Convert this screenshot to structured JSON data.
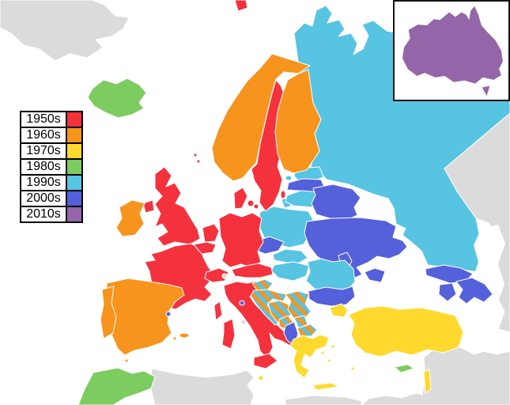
{
  "legend": {
    "items": [
      {
        "label": "1950s",
        "color": "#F4323E"
      },
      {
        "label": "1960s",
        "color": "#F7941E"
      },
      {
        "label": "1970s",
        "color": "#FFD92D"
      },
      {
        "label": "1980s",
        "color": "#7CCC5F"
      },
      {
        "label": "1990s",
        "color": "#57C4E2"
      },
      {
        "label": "2000s",
        "color": "#5560DB"
      },
      {
        "label": "2010s",
        "color": "#9466A9"
      }
    ],
    "border_color": "#000000",
    "background_color": "#ffffff"
  },
  "inset": {
    "region": "australia",
    "border_color": "#141414",
    "background_color": "#ffffff"
  },
  "map": {
    "sea_color": "#ffffff",
    "border_color": "#ffffff",
    "nonparticipant_color": "#DBDBDB",
    "striped_value": "1960s+1990s",
    "striped_colors": [
      "1960s",
      "1990s"
    ],
    "country_decades": {
      "uk": "1950s",
      "northern-ireland": "1950s",
      "france": "1950s",
      "corsica": "1950s",
      "germany": "1950s",
      "italy": "1950s",
      "sicily": "1950s",
      "sardinia": "1950s",
      "netherlands": "1950s",
      "belgium": "1950s",
      "switzerland": "1950s",
      "austria": "1950s",
      "denmark": "1950s",
      "denmark-island": "1950s",
      "denmark-island2": "1950s",
      "sweden": "1950s",
      "gotland": "1950s",
      "arctic-island": "1950s",
      "shetland": "1950s",
      "shetland2": "1950s",
      "ireland": "1960s",
      "norway": "1960s",
      "finland": "1960s",
      "spain": "1960s",
      "portugal": "1960s",
      "balearic": "1960s",
      "balearic2": "1960s",
      "ceuta": "1960s",
      "greece": "1970s",
      "crete": "1970s",
      "aegean-island": "1970s",
      "aegean-island2": "1970s",
      "aegean-island3": "1970s",
      "rhodes": "1970s",
      "turkey": "1970s",
      "turkey-europe": "1970s",
      "israel": "1970s",
      "malta": "1970s",
      "iceland": "1980s",
      "cyprus": "1980s",
      "morocco": "1980s",
      "russia": "1990s",
      "kaliningrad": "1990s",
      "estonia": "1990s",
      "saaremaa": "1990s",
      "lithuania": "1990s",
      "poland": "1990s",
      "slovakia": "1990s",
      "hungary": "1990s",
      "romania": "1990s",
      "latvia": "2000s",
      "belarus": "2000s",
      "ukraine": "2000s",
      "crimea": "2000s",
      "moldova": "2000s",
      "czechia": "2000s",
      "bulgaria": "2000s",
      "albania": "2000s",
      "georgia": "2000s",
      "armenia": "2000s",
      "azerbaijan": "2000s",
      "andorra": "2000s",
      "san-marino": "2000s",
      "slovenia": "1960s+1990s",
      "croatia": "1960s+1990s",
      "bosnia-herzegovina": "1960s+1990s",
      "serbia": "1960s+1990s",
      "montenegro": "1960s+1990s",
      "kosovo": "1960s+1990s",
      "north-macedonia": "1960s+1990s",
      "australia": "2010s",
      "greenland": "none",
      "kazakhstan-central-asia": "none",
      "middle-east": "none",
      "algeria-tunisia": "none",
      "libya-strip": "none",
      "liechtenstein": "none",
      "vatican": "none"
    }
  }
}
